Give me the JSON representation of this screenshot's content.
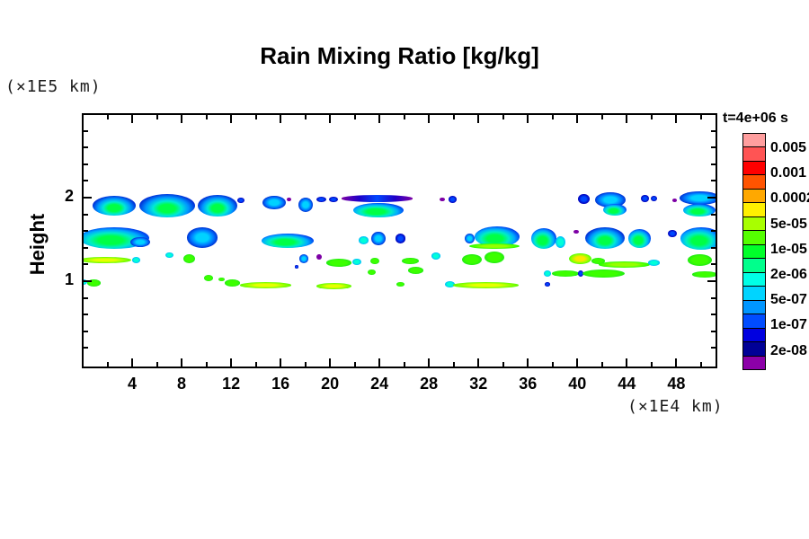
{
  "title": "Rain Mixing Ratio [kg/kg]",
  "y_axis": {
    "unit_label": "(×1E5 km)",
    "axis_label": "Height",
    "major_ticks": [
      1,
      2
    ],
    "minor_ticks": [
      0.2,
      0.4,
      0.6,
      0.8,
      1.2,
      1.4,
      1.6,
      1.8,
      2.2,
      2.4,
      2.6,
      2.8
    ],
    "range": [
      0,
      3.0
    ]
  },
  "x_axis": {
    "unit_label": "(×1E4 km)",
    "major_ticks": [
      4,
      8,
      12,
      16,
      20,
      24,
      28,
      32,
      36,
      40,
      44,
      48
    ],
    "minor_ticks": [
      2,
      6,
      10,
      14,
      18,
      22,
      26,
      30,
      34,
      38,
      42,
      46,
      50
    ],
    "range": [
      0,
      51.3
    ]
  },
  "legend": {
    "title": "t=4e+06 s",
    "labels": [
      "0.005",
      "0.001",
      "0.0002",
      "5e-05",
      "1e-05",
      "2e-06",
      "5e-07",
      "1e-07",
      "2e-08"
    ],
    "colors": [
      "#ff9e9e",
      "#ff5454",
      "#ff0000",
      "#ff5400",
      "#ffa800",
      "#fff000",
      "#a8ff00",
      "#54ff00",
      "#00ff2a",
      "#00ff8c",
      "#00ffe6",
      "#00d4ff",
      "#0096ff",
      "#004cff",
      "#0000e0",
      "#000096",
      "#8c00a8"
    ]
  },
  "chart_data": {
    "type": "heatmap",
    "subtype": "filled-contour-clouds",
    "title": "Rain Mixing Ratio [kg/kg]",
    "time_annotation": "t=4e+06 s",
    "xlabel": "(×1E4 km)",
    "ylabel": "Height (×1E5 km)",
    "xlim": [
      0,
      51.3
    ],
    "ylim": [
      0,
      3.0
    ],
    "contour_levels": [
      "2e-08",
      "1e-07",
      "5e-07",
      "2e-06",
      "1e-05",
      "5e-05",
      "0.0002",
      "0.001",
      "0.005"
    ],
    "blob_format": [
      "x_center(1e4 km)",
      "y_center(1e5 km)",
      "width",
      "height",
      "style"
    ],
    "styles": {
      "deep": {
        "pos": "45% 60%",
        "stops": [
          "#00ff45 0%",
          "#00ff45 22%",
          "#00ecc8 40%",
          "#00aaff 56%",
          "#0044f0 72%",
          "#0000a0 88%",
          "#7d00a5 100%"
        ]
      },
      "deep2": {
        "pos": "50% 62%",
        "stops": [
          "#00ff45 0%",
          "#00ff45 20%",
          "#00e8d8 36%",
          "#0096ff 54%",
          "#0030d8 72%",
          "#000090 88%",
          "#6a00a0 100%"
        ]
      },
      "blue": {
        "pos": "50% 50%",
        "stops": [
          "#00d2ff 0%",
          "#00d2ff 28%",
          "#0078ff 52%",
          "#0020c8 76%",
          "#000082 94%",
          "#5a0096 100%"
        ]
      },
      "navy": {
        "pos": "50% 50%",
        "stops": [
          "#0048ff 0%",
          "#0048ff 30%",
          "#0000bc 68%",
          "#28008c 100%"
        ]
      },
      "purple": {
        "pos": "50% 50%",
        "stops": [
          "#7d00a5 0%",
          "#7d00a5 100%"
        ]
      },
      "cyan": {
        "pos": "50% 50%",
        "stops": [
          "#00ffd9 0%",
          "#00ffd9 38%",
          "#00b4ff 72%",
          "#0064e6 100%"
        ]
      },
      "green": {
        "pos": "50% 50%",
        "stops": [
          "#3cff00 0%",
          "#3cff00 45%",
          "#00d22a 100%"
        ]
      },
      "greenline": {
        "pos": "50% 50%",
        "stops": [
          "#96ff00 0%",
          "#96ff00 35%",
          "#2aff00 68%",
          "#00c832 100%"
        ]
      },
      "yellowline": {
        "pos": "50% 50%",
        "stops": [
          "#e6ff00 0%",
          "#e6ff00 30%",
          "#78ff00 62%",
          "#1edc00 100%"
        ]
      },
      "yellowblob": {
        "pos": "50% 50%",
        "stops": [
          "#ffe600 0%",
          "#ffe600 28%",
          "#96ff00 55%",
          "#1eff00 80%",
          "#00c8a0 100%"
        ]
      },
      "navyline": {
        "linear": true,
        "stops": [
          "#7d00a5 0%",
          "#1e00c8 25%",
          "#0048ff 50%",
          "#1e00c8 75%",
          "#7d00a5 100%"
        ]
      }
    },
    "blobs": [
      [
        2.54,
        1.9,
        3.49,
        0.24,
        "deep2"
      ],
      [
        6.83,
        1.9,
        4.51,
        0.28,
        "deep2"
      ],
      [
        10.9,
        1.9,
        3.2,
        0.26,
        "deep2"
      ],
      [
        12.8,
        1.97,
        0.58,
        0.07,
        "navy"
      ],
      [
        15.5,
        1.94,
        1.89,
        0.17,
        "blue"
      ],
      [
        16.7,
        1.98,
        0.36,
        0.05,
        "purple"
      ],
      [
        18.0,
        1.91,
        1.16,
        0.17,
        "blue"
      ],
      [
        19.3,
        1.98,
        0.87,
        0.07,
        "navy"
      ],
      [
        20.3,
        1.98,
        0.73,
        0.07,
        "navy"
      ],
      [
        23.8,
        1.99,
        5.8,
        0.08,
        "navyline"
      ],
      [
        23.9,
        1.85,
        4.07,
        0.18,
        "deep"
      ],
      [
        29.1,
        1.98,
        0.44,
        0.05,
        "purple"
      ],
      [
        29.9,
        1.98,
        0.65,
        0.08,
        "navy"
      ],
      [
        40.5,
        1.98,
        0.94,
        0.12,
        "navy"
      ],
      [
        42.7,
        1.97,
        2.47,
        0.18,
        "blue"
      ],
      [
        43.0,
        1.86,
        1.89,
        0.14,
        "deep"
      ],
      [
        45.5,
        1.99,
        0.65,
        0.09,
        "navy"
      ],
      [
        46.2,
        1.99,
        0.51,
        0.07,
        "navy"
      ],
      [
        47.9,
        1.97,
        0.36,
        0.04,
        "purple"
      ],
      [
        49.9,
        1.99,
        3.34,
        0.16,
        "blue"
      ],
      [
        49.9,
        1.85,
        2.62,
        0.15,
        "deep"
      ],
      [
        2.54,
        1.52,
        5.67,
        0.26,
        "deep"
      ],
      [
        4.65,
        1.47,
        1.6,
        0.12,
        "blue"
      ],
      [
        9.67,
        1.52,
        2.47,
        0.24,
        "blue"
      ],
      [
        7.0,
        1.31,
        0.65,
        0.07,
        "cyan"
      ],
      [
        16.6,
        1.48,
        4.22,
        0.17,
        "deep"
      ],
      [
        22.7,
        1.49,
        0.8,
        0.09,
        "cyan"
      ],
      [
        23.9,
        1.51,
        1.16,
        0.17,
        "blue"
      ],
      [
        25.7,
        1.51,
        0.8,
        0.11,
        "navy"
      ],
      [
        31.3,
        1.51,
        0.8,
        0.12,
        "blue"
      ],
      [
        33.5,
        1.53,
        3.63,
        0.25,
        "deep"
      ],
      [
        33.3,
        1.42,
        4.07,
        0.07,
        "greenline"
      ],
      [
        37.3,
        1.51,
        2.03,
        0.24,
        "deep"
      ],
      [
        38.6,
        1.47,
        0.8,
        0.14,
        "cyan"
      ],
      [
        39.9,
        1.59,
        0.44,
        0.05,
        "purple"
      ],
      [
        42.2,
        1.52,
        3.2,
        0.26,
        "deep2"
      ],
      [
        45.0,
        1.51,
        1.82,
        0.22,
        "deep"
      ],
      [
        47.7,
        1.57,
        0.73,
        0.09,
        "navy"
      ],
      [
        50.0,
        1.51,
        3.34,
        0.26,
        "deep"
      ],
      [
        1.82,
        1.25,
        4.22,
        0.08,
        "yellowline"
      ],
      [
        4.3,
        1.25,
        0.65,
        0.07,
        "cyan"
      ],
      [
        8.6,
        1.27,
        0.94,
        0.11,
        "green"
      ],
      [
        10.2,
        1.04,
        0.73,
        0.07,
        "green"
      ],
      [
        11.2,
        1.02,
        0.51,
        0.05,
        "green"
      ],
      [
        17.9,
        1.27,
        0.73,
        0.1,
        "blue"
      ],
      [
        17.3,
        1.17,
        0.36,
        0.04,
        "navy"
      ],
      [
        19.1,
        1.29,
        0.44,
        0.07,
        "purple"
      ],
      [
        20.7,
        1.22,
        2.03,
        0.09,
        "green"
      ],
      [
        22.2,
        1.23,
        0.73,
        0.08,
        "cyan"
      ],
      [
        23.6,
        1.24,
        0.73,
        0.08,
        "green"
      ],
      [
        26.5,
        1.24,
        1.38,
        0.08,
        "green"
      ],
      [
        26.9,
        1.13,
        1.24,
        0.08,
        "green"
      ],
      [
        28.6,
        1.3,
        0.73,
        0.08,
        "cyan"
      ],
      [
        31.5,
        1.26,
        1.6,
        0.13,
        "green"
      ],
      [
        33.3,
        1.28,
        1.6,
        0.14,
        "green"
      ],
      [
        40.2,
        1.27,
        1.82,
        0.13,
        "yellowblob"
      ],
      [
        41.7,
        1.24,
        1.09,
        0.07,
        "green"
      ],
      [
        43.8,
        1.2,
        4.14,
        0.07,
        "greenline"
      ],
      [
        46.2,
        1.22,
        0.94,
        0.07,
        "cyan"
      ],
      [
        49.9,
        1.25,
        2.03,
        0.14,
        "green"
      ],
      [
        50.3,
        1.08,
        2.03,
        0.07,
        "green"
      ],
      [
        0.07,
        0.99,
        0.65,
        0.07,
        "cyan"
      ],
      [
        0.94,
        0.98,
        1.09,
        0.08,
        "green"
      ],
      [
        12.1,
        0.98,
        1.24,
        0.08,
        "green"
      ],
      [
        14.8,
        0.95,
        4.14,
        0.07,
        "yellowline"
      ],
      [
        20.3,
        0.94,
        2.83,
        0.07,
        "yellowline"
      ],
      [
        23.4,
        1.11,
        0.65,
        0.07,
        "green"
      ],
      [
        25.7,
        0.96,
        0.65,
        0.05,
        "green"
      ],
      [
        29.7,
        0.96,
        0.8,
        0.07,
        "cyan"
      ],
      [
        32.6,
        0.95,
        5.3,
        0.07,
        "yellowline"
      ],
      [
        37.6,
        1.09,
        0.58,
        0.07,
        "cyan"
      ],
      [
        39.0,
        1.09,
        2.18,
        0.07,
        "green"
      ],
      [
        40.3,
        1.09,
        0.44,
        0.07,
        "navy"
      ],
      [
        42.1,
        1.09,
        3.42,
        0.1,
        "green"
      ],
      [
        37.6,
        0.96,
        0.44,
        0.05,
        "navy"
      ]
    ]
  }
}
